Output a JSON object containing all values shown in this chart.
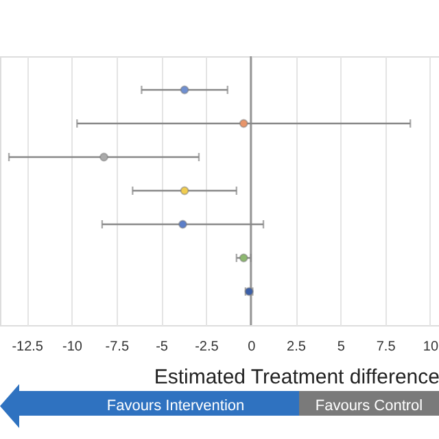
{
  "chart_data": {
    "type": "scatter",
    "orientation": "horizontal",
    "xlabel": "Estimated Treatment difference",
    "categories": [
      null,
      null,
      null,
      null,
      null,
      null,
      null
    ],
    "values": [
      -3.7,
      -0.4,
      -8.2,
      -3.7,
      -3.8,
      -0.4,
      -0.1
    ],
    "errors": [
      [
        -6.1,
        -1.3
      ],
      [
        -9.7,
        8.9
      ],
      [
        -13.5,
        -2.9
      ],
      [
        -6.6,
        -0.8
      ],
      [
        -8.3,
        0.7
      ],
      [
        -0.8,
        0
      ],
      [
        -0.3,
        0.1
      ]
    ],
    "colors": [
      "#6f8fd0",
      "#e8956a",
      "#aaaaaa",
      "#f0cc50",
      "#5b7ec8",
      "#8db870",
      "#3b5fa8"
    ],
    "xlim": [
      -14,
      10.5
    ],
    "xticks": [
      -12.5,
      -10,
      -7.5,
      -5,
      -2.5,
      0,
      2.5,
      5,
      7.5,
      10
    ],
    "grid": true,
    "marker": "circle",
    "ref_lines": [
      {
        "axis": "x",
        "value": 0,
        "color": "#999999"
      }
    ],
    "annotations": [
      "Favours Intervention",
      "Favours Control"
    ]
  }
}
